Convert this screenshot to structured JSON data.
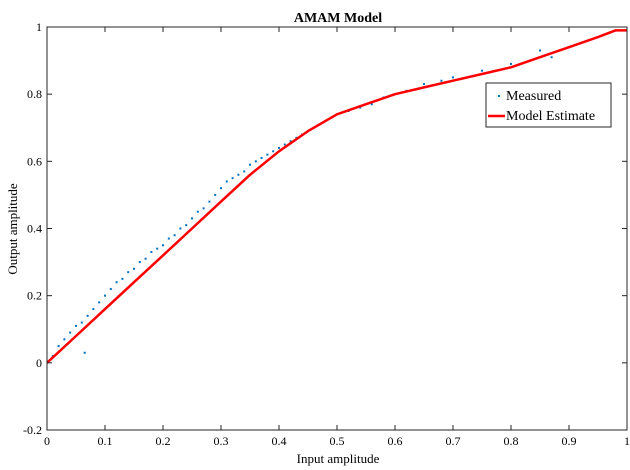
{
  "chart_data": {
    "type": "scatter",
    "title": "AMAM Model",
    "xlabel": "Input amplitude",
    "ylabel": "Output amplitude",
    "xlim": [
      0,
      1
    ],
    "ylim": [
      -0.2,
      1
    ],
    "xticks": [
      "0",
      "0.1",
      "0.2",
      "0.3",
      "0.4",
      "0.5",
      "0.6",
      "0.7",
      "0.8",
      "0.9",
      "1"
    ],
    "yticks": [
      "-0.2",
      "0",
      "0.2",
      "0.4",
      "0.6",
      "0.8",
      "1"
    ],
    "grid": false,
    "legend": "top-right",
    "series": [
      {
        "name": "Measured",
        "kind": "scatter",
        "color": "#0072BD",
        "x": [
          0.01,
          0.02,
          0.025,
          0.03,
          0.04,
          0.05,
          0.06,
          0.065,
          0.07,
          0.08,
          0.09,
          0.1,
          0.11,
          0.12,
          0.13,
          0.14,
          0.15,
          0.16,
          0.17,
          0.18,
          0.19,
          0.2,
          0.21,
          0.22,
          0.23,
          0.24,
          0.25,
          0.26,
          0.27,
          0.28,
          0.29,
          0.3,
          0.31,
          0.32,
          0.33,
          0.34,
          0.35,
          0.36,
          0.37,
          0.38,
          0.39,
          0.4,
          0.41,
          0.42,
          0.43,
          0.44,
          0.45,
          0.46,
          0.47,
          0.48,
          0.49,
          0.5,
          0.52,
          0.54,
          0.56,
          0.58,
          0.6,
          0.62,
          0.65,
          0.68,
          0.7,
          0.75,
          0.8,
          0.85,
          0.87,
          0.95
        ],
        "y": [
          0.02,
          0.05,
          0.04,
          0.07,
          0.09,
          0.11,
          0.12,
          0.03,
          0.14,
          0.16,
          0.18,
          0.2,
          0.22,
          0.24,
          0.25,
          0.27,
          0.28,
          0.3,
          0.31,
          0.33,
          0.34,
          0.35,
          0.37,
          0.38,
          0.4,
          0.41,
          0.43,
          0.45,
          0.46,
          0.48,
          0.5,
          0.52,
          0.54,
          0.55,
          0.56,
          0.57,
          0.59,
          0.6,
          0.61,
          0.62,
          0.63,
          0.64,
          0.65,
          0.66,
          0.67,
          0.68,
          0.69,
          0.7,
          0.71,
          0.72,
          0.73,
          0.74,
          0.75,
          0.76,
          0.77,
          0.79,
          0.8,
          0.81,
          0.83,
          0.84,
          0.85,
          0.87,
          0.89,
          0.93,
          0.91,
          0.97
        ]
      },
      {
        "name": "Model Estimate",
        "kind": "line",
        "color": "#FF0000",
        "x": [
          0,
          0.05,
          0.1,
          0.15,
          0.2,
          0.25,
          0.3,
          0.35,
          0.4,
          0.45,
          0.5,
          0.55,
          0.6,
          0.65,
          0.7,
          0.75,
          0.8,
          0.85,
          0.9,
          0.95,
          0.98,
          1
        ],
        "y": [
          0,
          0.08,
          0.16,
          0.24,
          0.32,
          0.4,
          0.48,
          0.56,
          0.63,
          0.69,
          0.74,
          0.77,
          0.8,
          0.82,
          0.84,
          0.86,
          0.88,
          0.91,
          0.94,
          0.97,
          0.99,
          0.99
        ]
      }
    ]
  }
}
